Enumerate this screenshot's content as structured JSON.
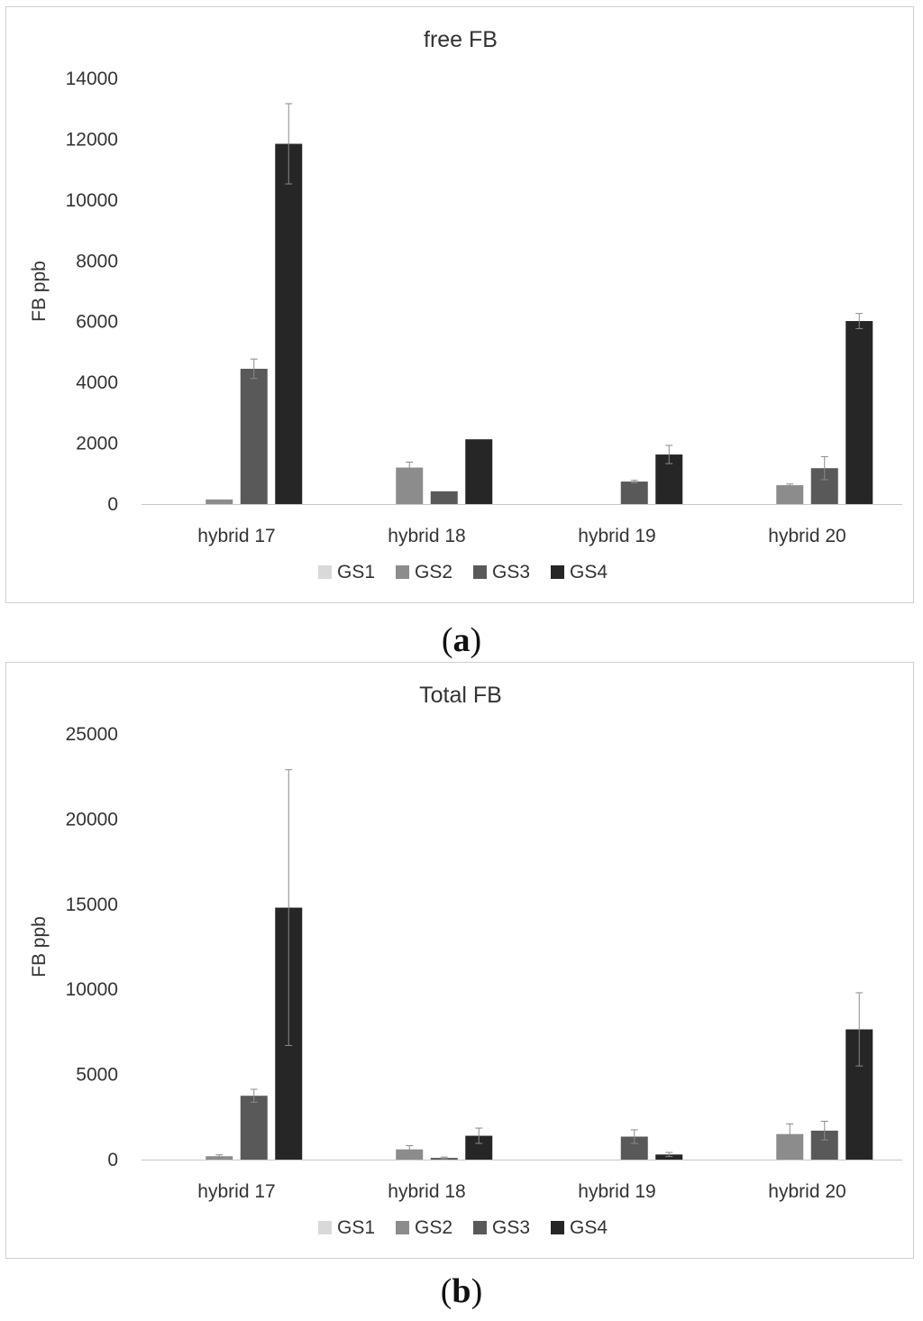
{
  "chart_data": [
    {
      "type": "bar",
      "title": "free FB",
      "xlabel": "",
      "ylabel": "FB ppb",
      "ylim": [
        0,
        14000
      ],
      "yticks": [
        0,
        2000,
        4000,
        6000,
        8000,
        10000,
        12000,
        14000
      ],
      "categories": [
        "hybrid 17",
        "hybrid 18",
        "hybrid 19",
        "hybrid 20"
      ],
      "series": [
        {
          "name": "GS1",
          "color": "#d9d9d9",
          "values": [
            0,
            0,
            0,
            0
          ],
          "errors": [
            0,
            0,
            0,
            0
          ]
        },
        {
          "name": "GS2",
          "color": "#8c8c8c",
          "values": [
            150,
            1200,
            0,
            620
          ],
          "errors": [
            0,
            180,
            0,
            40
          ]
        },
        {
          "name": "GS3",
          "color": "#595959",
          "values": [
            4450,
            420,
            740,
            1180
          ],
          "errors": [
            320,
            0,
            40,
            380
          ]
        },
        {
          "name": "GS4",
          "color": "#262626",
          "values": [
            11850,
            2130,
            1630,
            6020
          ],
          "errors": [
            1320,
            0,
            300,
            250
          ]
        }
      ],
      "legend": "bottom",
      "grid": false
    },
    {
      "type": "bar",
      "title": "Total FB",
      "xlabel": "",
      "ylabel": "FB ppb",
      "ylim": [
        0,
        25000
      ],
      "yticks": [
        0,
        5000,
        10000,
        15000,
        20000,
        25000
      ],
      "categories": [
        "hybrid 17",
        "hybrid 18",
        "hybrid 19",
        "hybrid 20"
      ],
      "series": [
        {
          "name": "GS1",
          "color": "#d9d9d9",
          "values": [
            0,
            0,
            0,
            0
          ],
          "errors": [
            0,
            0,
            0,
            0
          ]
        },
        {
          "name": "GS2",
          "color": "#8c8c8c",
          "values": [
            200,
            600,
            0,
            1500
          ],
          "errors": [
            80,
            220,
            0,
            600
          ]
        },
        {
          "name": "GS3",
          "color": "#595959",
          "values": [
            3750,
            100,
            1350,
            1700
          ],
          "errors": [
            380,
            50,
            400,
            550
          ]
        },
        {
          "name": "GS4",
          "color": "#262626",
          "values": [
            14800,
            1400,
            300,
            7650
          ],
          "errors": [
            8100,
            450,
            120,
            2150
          ]
        }
      ],
      "legend": "bottom",
      "grid": false
    }
  ],
  "captions": [
    {
      "open": "(",
      "letter": "a",
      "close": ")"
    },
    {
      "open": "(",
      "letter": "b",
      "close": ")"
    }
  ]
}
